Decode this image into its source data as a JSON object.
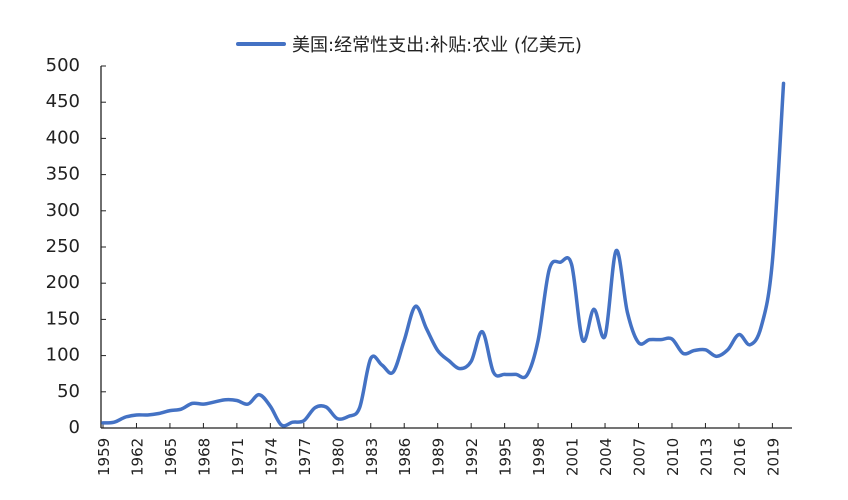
{
  "chart_data": {
    "type": "line",
    "title": "",
    "legend": [
      "美国:经常性支出:补贴:农业 (亿美元)"
    ],
    "legend_position": "top",
    "xlabel": "",
    "ylabel": "",
    "ylim": [
      0,
      500
    ],
    "yticks": [
      0,
      50,
      100,
      150,
      200,
      250,
      300,
      350,
      400,
      450,
      500
    ],
    "xtick_labels": [
      "1959",
      "1962",
      "1965",
      "1968",
      "1971",
      "1974",
      "1977",
      "1980",
      "1983",
      "1986",
      "1989",
      "1992",
      "1995",
      "1998",
      "2001",
      "2004",
      "2007",
      "2010",
      "2013",
      "2016",
      "2019"
    ],
    "grid": false,
    "line_color": "#4472C4",
    "x": [
      1959,
      1960,
      1961,
      1962,
      1963,
      1964,
      1965,
      1966,
      1967,
      1968,
      1969,
      1970,
      1971,
      1972,
      1973,
      1974,
      1975,
      1976,
      1977,
      1978,
      1979,
      1980,
      1981,
      1982,
      1983,
      1984,
      1985,
      1986,
      1987,
      1988,
      1989,
      1990,
      1991,
      1992,
      1993,
      1994,
      1995,
      1996,
      1997,
      1998,
      1999,
      2000,
      2001,
      2002,
      2003,
      2004,
      2005,
      2006,
      2007,
      2008,
      2009,
      2010,
      2011,
      2012,
      2013,
      2014,
      2015,
      2016,
      2017,
      2018,
      2019,
      2020
    ],
    "series": [
      {
        "name": "美国:经常性支出:补贴:农业 (亿美元)",
        "values": [
          7,
          8,
          15,
          18,
          18,
          20,
          24,
          26,
          34,
          33,
          36,
          39,
          38,
          33,
          46,
          30,
          4,
          8,
          10,
          28,
          29,
          13,
          16,
          28,
          96,
          87,
          77,
          121,
          168,
          137,
          107,
          93,
          82,
          92,
          133,
          77,
          74,
          74,
          73,
          121,
          219,
          229,
          226,
          121,
          164,
          127,
          245,
          160,
          118,
          122,
          122,
          123,
          103,
          107,
          108,
          99,
          108,
          129,
          115,
          140,
          230,
          476
        ]
      }
    ]
  }
}
